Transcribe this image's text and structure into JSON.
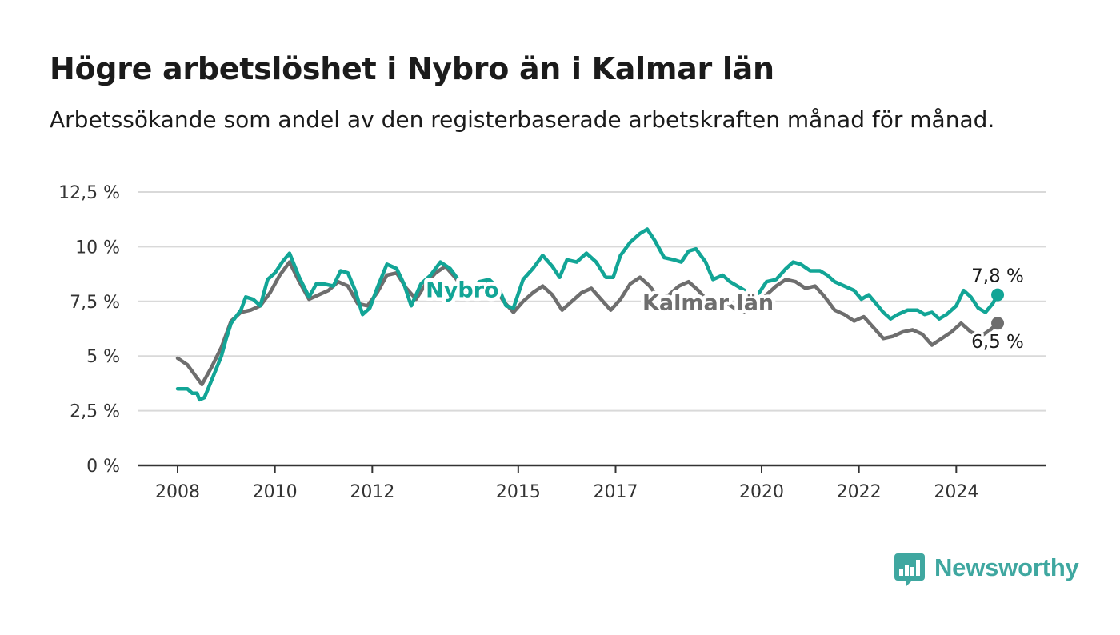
{
  "title": "Högre arbetslöshet i Nybro än i Kalmar län",
  "subtitle": "Arbetssökande som andel av den registerbaserade arbetskraften månad för månad.",
  "brand": {
    "name": "Newsworthy",
    "color": "#3fa7a0",
    "icon": "newsworthy-logo-icon"
  },
  "chart_data": {
    "type": "line",
    "title": "Högre arbetslöshet i Nybro än i Kalmar län",
    "subtitle": "Arbetssökande som andel av den registerbaserade arbetskraften månad för månad.",
    "xlabel": "",
    "ylabel": "",
    "xlim": [
      2008,
      2025
    ],
    "ylim": [
      0,
      12.5
    ],
    "grid": true,
    "legend": "inline labels",
    "x_ticks": [
      {
        "value": 2008,
        "label": "2008"
      },
      {
        "value": 2010,
        "label": "2010"
      },
      {
        "value": 2012,
        "label": "2012"
      },
      {
        "value": 2015,
        "label": "2015"
      },
      {
        "value": 2017,
        "label": "2017"
      },
      {
        "value": 2020,
        "label": "2020"
      },
      {
        "value": 2022,
        "label": "2022"
      },
      {
        "value": 2024,
        "label": "2024"
      }
    ],
    "y_ticks": [
      {
        "value": 0,
        "label": "0 %"
      },
      {
        "value": 2.5,
        "label": "2,5 %"
      },
      {
        "value": 5,
        "label": "5 %"
      },
      {
        "value": 7.5,
        "label": "7,5 %"
      },
      {
        "value": 10,
        "label": "10 %"
      },
      {
        "value": 12.5,
        "label": "12,5 %"
      }
    ],
    "series": [
      {
        "name": "Kalmar län",
        "color": "#6e6e6e",
        "end_label": "6,5 %",
        "points": [
          [
            2008.0,
            4.9
          ],
          [
            2008.2,
            4.6
          ],
          [
            2008.4,
            4.0
          ],
          [
            2008.5,
            3.7
          ],
          [
            2008.7,
            4.5
          ],
          [
            2008.9,
            5.4
          ],
          [
            2009.1,
            6.6
          ],
          [
            2009.3,
            7.0
          ],
          [
            2009.5,
            7.1
          ],
          [
            2009.7,
            7.3
          ],
          [
            2009.9,
            7.9
          ],
          [
            2010.1,
            8.7
          ],
          [
            2010.3,
            9.3
          ],
          [
            2010.5,
            8.4
          ],
          [
            2010.7,
            7.6
          ],
          [
            2010.9,
            7.8
          ],
          [
            2011.1,
            8.0
          ],
          [
            2011.3,
            8.4
          ],
          [
            2011.5,
            8.2
          ],
          [
            2011.7,
            7.4
          ],
          [
            2011.9,
            7.3
          ],
          [
            2012.1,
            7.9
          ],
          [
            2012.3,
            8.7
          ],
          [
            2012.5,
            8.8
          ],
          [
            2012.7,
            8.1
          ],
          [
            2012.9,
            7.6
          ],
          [
            2013.1,
            8.3
          ],
          [
            2013.3,
            8.8
          ],
          [
            2013.5,
            9.1
          ],
          [
            2013.7,
            8.6
          ],
          [
            2013.9,
            8.0
          ],
          [
            2014.1,
            8.1
          ],
          [
            2014.3,
            8.4
          ],
          [
            2014.5,
            8.2
          ],
          [
            2014.7,
            7.5
          ],
          [
            2014.9,
            7.0
          ],
          [
            2015.1,
            7.5
          ],
          [
            2015.3,
            7.9
          ],
          [
            2015.5,
            8.2
          ],
          [
            2015.7,
            7.8
          ],
          [
            2015.9,
            7.1
          ],
          [
            2016.1,
            7.5
          ],
          [
            2016.3,
            7.9
          ],
          [
            2016.5,
            8.1
          ],
          [
            2016.7,
            7.6
          ],
          [
            2016.9,
            7.1
          ],
          [
            2017.1,
            7.6
          ],
          [
            2017.3,
            8.3
          ],
          [
            2017.5,
            8.6
          ],
          [
            2017.7,
            8.2
          ],
          [
            2017.9,
            7.6
          ],
          [
            2018.1,
            7.8
          ],
          [
            2018.3,
            8.2
          ],
          [
            2018.5,
            8.4
          ],
          [
            2018.7,
            8.0
          ],
          [
            2018.9,
            7.5
          ],
          [
            2019.1,
            7.6
          ],
          [
            2019.3,
            7.4
          ],
          [
            2019.5,
            7.1
          ],
          [
            2019.7,
            7.0
          ],
          [
            2019.9,
            7.4
          ],
          [
            2020.1,
            7.8
          ],
          [
            2020.3,
            8.2
          ],
          [
            2020.5,
            8.5
          ],
          [
            2020.7,
            8.4
          ],
          [
            2020.9,
            8.1
          ],
          [
            2021.1,
            8.2
          ],
          [
            2021.3,
            7.7
          ],
          [
            2021.5,
            7.1
          ],
          [
            2021.7,
            6.9
          ],
          [
            2021.9,
            6.6
          ],
          [
            2022.1,
            6.8
          ],
          [
            2022.3,
            6.3
          ],
          [
            2022.5,
            5.8
          ],
          [
            2022.7,
            5.9
          ],
          [
            2022.9,
            6.1
          ],
          [
            2023.1,
            6.2
          ],
          [
            2023.3,
            6.0
          ],
          [
            2023.5,
            5.5
          ],
          [
            2023.7,
            5.8
          ],
          [
            2023.9,
            6.1
          ],
          [
            2024.1,
            6.5
          ],
          [
            2024.3,
            6.1
          ],
          [
            2024.5,
            5.9
          ],
          [
            2024.7,
            6.2
          ],
          [
            2024.85,
            6.5
          ]
        ]
      },
      {
        "name": "Nybro",
        "color": "#12a596",
        "end_label": "7,8 %",
        "points": [
          [
            2008.0,
            3.5
          ],
          [
            2008.2,
            3.5
          ],
          [
            2008.3,
            3.3
          ],
          [
            2008.4,
            3.3
          ],
          [
            2008.45,
            3.0
          ],
          [
            2008.55,
            3.1
          ],
          [
            2008.7,
            3.9
          ],
          [
            2008.9,
            5.0
          ],
          [
            2009.0,
            5.8
          ],
          [
            2009.1,
            6.5
          ],
          [
            2009.3,
            7.1
          ],
          [
            2009.4,
            7.7
          ],
          [
            2009.55,
            7.6
          ],
          [
            2009.7,
            7.3
          ],
          [
            2009.85,
            8.5
          ],
          [
            2010.0,
            8.8
          ],
          [
            2010.15,
            9.3
          ],
          [
            2010.3,
            9.7
          ],
          [
            2010.5,
            8.6
          ],
          [
            2010.7,
            7.7
          ],
          [
            2010.85,
            8.3
          ],
          [
            2011.0,
            8.3
          ],
          [
            2011.2,
            8.2
          ],
          [
            2011.35,
            8.9
          ],
          [
            2011.5,
            8.8
          ],
          [
            2011.65,
            8.0
          ],
          [
            2011.8,
            6.9
          ],
          [
            2011.95,
            7.2
          ],
          [
            2012.1,
            8.1
          ],
          [
            2012.3,
            9.2
          ],
          [
            2012.5,
            9.0
          ],
          [
            2012.65,
            8.3
          ],
          [
            2012.8,
            7.3
          ],
          [
            2013.0,
            8.3
          ],
          [
            2013.2,
            8.7
          ],
          [
            2013.4,
            9.3
          ],
          [
            2013.6,
            9.0
          ],
          [
            2013.8,
            8.4
          ],
          [
            2014.0,
            8.0
          ],
          [
            2014.2,
            8.4
          ],
          [
            2014.4,
            8.5
          ],
          [
            2014.6,
            8.1
          ],
          [
            2014.75,
            7.3
          ],
          [
            2014.9,
            7.2
          ],
          [
            2015.1,
            8.5
          ],
          [
            2015.3,
            9.0
          ],
          [
            2015.5,
            9.6
          ],
          [
            2015.7,
            9.1
          ],
          [
            2015.85,
            8.6
          ],
          [
            2016.0,
            9.4
          ],
          [
            2016.2,
            9.3
          ],
          [
            2016.4,
            9.7
          ],
          [
            2016.6,
            9.3
          ],
          [
            2016.8,
            8.6
          ],
          [
            2016.95,
            8.6
          ],
          [
            2017.1,
            9.6
          ],
          [
            2017.3,
            10.2
          ],
          [
            2017.5,
            10.6
          ],
          [
            2017.65,
            10.8
          ],
          [
            2017.8,
            10.3
          ],
          [
            2018.0,
            9.5
          ],
          [
            2018.2,
            9.4
          ],
          [
            2018.35,
            9.3
          ],
          [
            2018.5,
            9.8
          ],
          [
            2018.65,
            9.9
          ],
          [
            2018.85,
            9.3
          ],
          [
            2019.0,
            8.5
          ],
          [
            2019.2,
            8.7
          ],
          [
            2019.35,
            8.4
          ],
          [
            2019.5,
            8.2
          ],
          [
            2019.65,
            8.0
          ],
          [
            2019.8,
            7.7
          ],
          [
            2019.95,
            7.9
          ],
          [
            2020.1,
            8.4
          ],
          [
            2020.3,
            8.5
          ],
          [
            2020.5,
            9.0
          ],
          [
            2020.65,
            9.3
          ],
          [
            2020.8,
            9.2
          ],
          [
            2021.0,
            8.9
          ],
          [
            2021.2,
            8.9
          ],
          [
            2021.35,
            8.7
          ],
          [
            2021.5,
            8.4
          ],
          [
            2021.7,
            8.2
          ],
          [
            2021.9,
            8.0
          ],
          [
            2022.05,
            7.6
          ],
          [
            2022.2,
            7.8
          ],
          [
            2022.35,
            7.4
          ],
          [
            2022.5,
            7.0
          ],
          [
            2022.65,
            6.7
          ],
          [
            2022.8,
            6.9
          ],
          [
            2023.0,
            7.1
          ],
          [
            2023.2,
            7.1
          ],
          [
            2023.35,
            6.9
          ],
          [
            2023.5,
            7.0
          ],
          [
            2023.65,
            6.7
          ],
          [
            2023.8,
            6.9
          ],
          [
            2024.0,
            7.3
          ],
          [
            2024.15,
            8.0
          ],
          [
            2024.3,
            7.7
          ],
          [
            2024.45,
            7.2
          ],
          [
            2024.6,
            7.0
          ],
          [
            2024.75,
            7.4
          ],
          [
            2024.85,
            7.8
          ]
        ]
      }
    ]
  }
}
